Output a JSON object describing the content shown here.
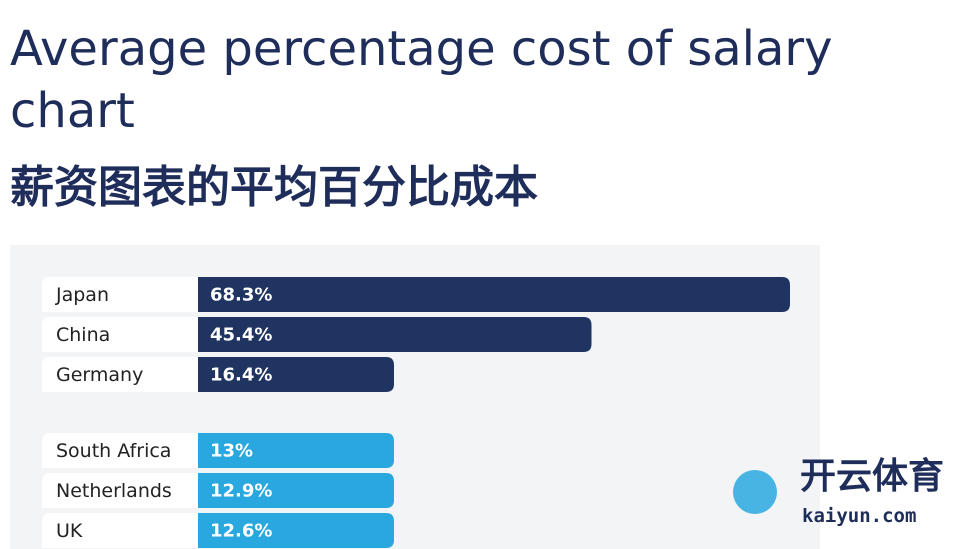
{
  "chart_data": {
    "type": "bar",
    "orientation": "horizontal",
    "title": "Average percentage cost of salary chart",
    "subtitle": "薪资图表的平均百分比成本",
    "categories": [
      "Japan",
      "China",
      "Germany",
      "South Africa",
      "Netherlands",
      "UK"
    ],
    "values": [
      68.3,
      45.4,
      16.4,
      13,
      12.9,
      12.6
    ],
    "value_labels": [
      "68.3%",
      "45.4%",
      "16.4%",
      "13%",
      "12.9%",
      "12.6%"
    ],
    "colors": [
      "#1f3461",
      "#1f3461",
      "#1f3461",
      "#29a8e0",
      "#29a8e0",
      "#29a8e0"
    ]
  },
  "watermark": {
    "brand": "开云体育",
    "site": "kaiyun.com"
  }
}
